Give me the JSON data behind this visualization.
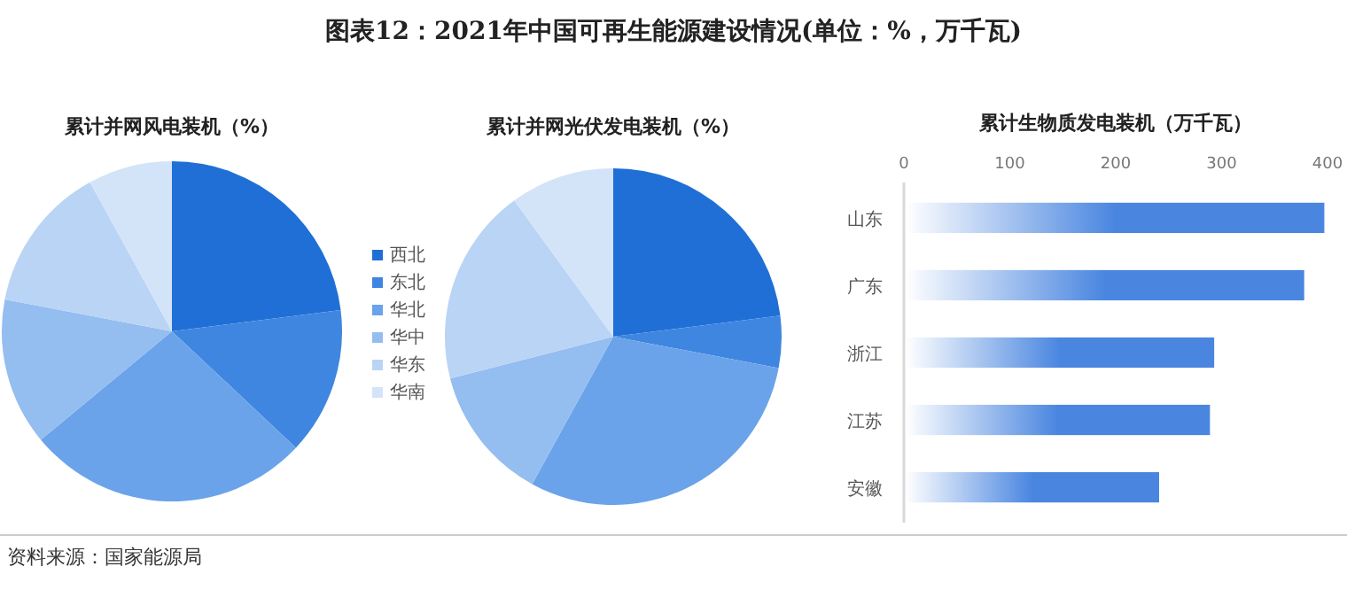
{
  "chart_data": [
    {
      "type": "pie",
      "title": "累计并网风电装机（%）",
      "categories": [
        "西北",
        "东北",
        "华北",
        "华中",
        "华东",
        "华南"
      ],
      "values": [
        23,
        14,
        27,
        14,
        14,
        8
      ],
      "colors": [
        "#1f6fd6",
        "#3f86e0",
        "#6aa3ea",
        "#94bdf0",
        "#b9d4f5",
        "#d3e4f9"
      ],
      "legend": "right",
      "annotations": [
        "资料来源：国家能源局"
      ]
    },
    {
      "type": "pie",
      "title": "图表12：2021年中国可再生能源建设情况(单位：%，万千瓦)",
      "subtitle": "累计并网光伏发电装机（%）",
      "categories": [
        null,
        null,
        null,
        null,
        null,
        null
      ],
      "values": [
        23,
        5,
        30,
        13,
        19,
        10
      ],
      "colors": [
        "#1f6fd6",
        "#3f86e0",
        "#6aa3ea",
        "#94bdf0",
        "#b9d4f5",
        "#d3e4f9"
      ],
      "legend": false
    },
    {
      "type": "bar",
      "orientation": "horizontal",
      "title": "累计生物质发电装机（万千瓦）",
      "categories": [
        "山东",
        "广东",
        "浙江",
        "江苏",
        "安徽"
      ],
      "values": [
        397,
        378,
        293,
        289,
        241
      ],
      "color": "#4a86e0",
      "xlim": [
        0,
        400
      ],
      "xticks": [
        0,
        100,
        200,
        300,
        400
      ],
      "grid": false
    }
  ]
}
